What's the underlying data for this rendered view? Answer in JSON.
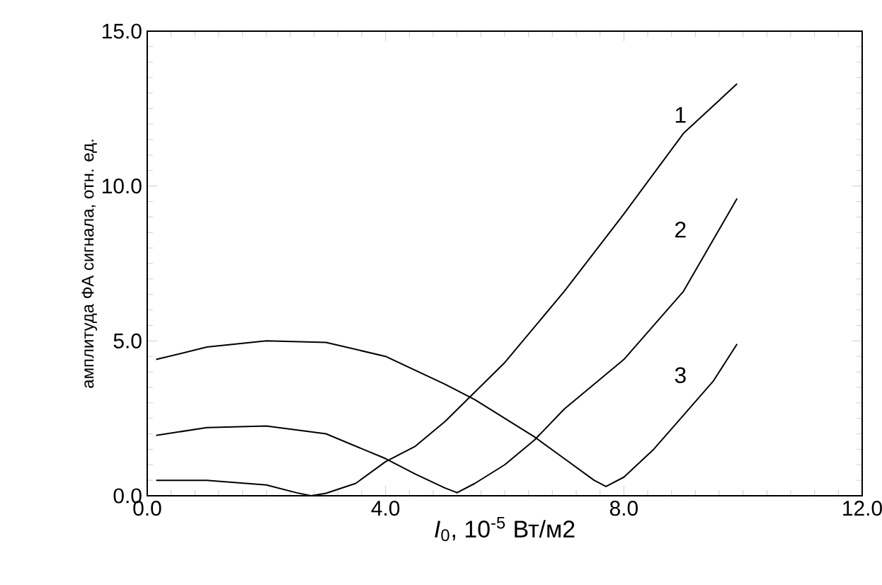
{
  "chart_data": {
    "type": "line",
    "xlabel": "*I*$_{0}$, 10$^{-5}$ Вт/м2",
    "ylabel": "амплитуда ФА сигнала, отн. ед.",
    "xlim": [
      0,
      12
    ],
    "ylim": [
      0,
      15
    ],
    "xticks": [
      {
        "value": 0,
        "label": "0.0"
      },
      {
        "value": 4,
        "label": "4.0"
      },
      {
        "value": 8,
        "label": "8.0"
      },
      {
        "value": 12,
        "label": "12.0"
      }
    ],
    "yticks": [
      {
        "value": 0,
        "label": "0.0"
      },
      {
        "value": 5,
        "label": "5.0"
      },
      {
        "value": 10,
        "label": "10.0"
      },
      {
        "value": 15,
        "label": "15.0"
      }
    ],
    "grid": false,
    "marker": "none",
    "line_style": "solid",
    "series": [
      {
        "name": "1",
        "color": "#000000",
        "x": [
          0.15,
          1.0,
          2.0,
          2.5,
          2.75,
          3.0,
          3.5,
          4.0,
          4.5,
          5.0,
          6.0,
          7.0,
          8.0,
          9.0,
          9.9
        ],
        "values": [
          0.5,
          0.5,
          0.35,
          0.1,
          0.0,
          0.08,
          0.4,
          1.1,
          1.6,
          2.4,
          4.3,
          6.6,
          9.1,
          11.7,
          13.3
        ]
      },
      {
        "name": "2",
        "color": "#000000",
        "x": [
          0.15,
          1.0,
          2.0,
          3.0,
          4.0,
          4.5,
          5.0,
          5.2,
          5.5,
          6.0,
          6.5,
          7.0,
          8.0,
          9.0,
          9.9
        ],
        "values": [
          1.95,
          2.2,
          2.25,
          2.0,
          1.2,
          0.7,
          0.25,
          0.1,
          0.4,
          1.0,
          1.8,
          2.8,
          4.4,
          6.6,
          9.6
        ]
      },
      {
        "name": "3",
        "color": "#000000",
        "x": [
          0.15,
          1.0,
          2.0,
          3.0,
          4.0,
          5.0,
          5.5,
          6.0,
          6.5,
          7.0,
          7.5,
          7.7,
          8.0,
          8.5,
          9.0,
          9.5,
          9.9
        ],
        "values": [
          4.4,
          4.8,
          5.0,
          4.95,
          4.5,
          3.6,
          3.1,
          2.5,
          1.9,
          1.2,
          0.5,
          0.3,
          0.6,
          1.5,
          2.6,
          3.7,
          4.9
        ]
      }
    ]
  }
}
